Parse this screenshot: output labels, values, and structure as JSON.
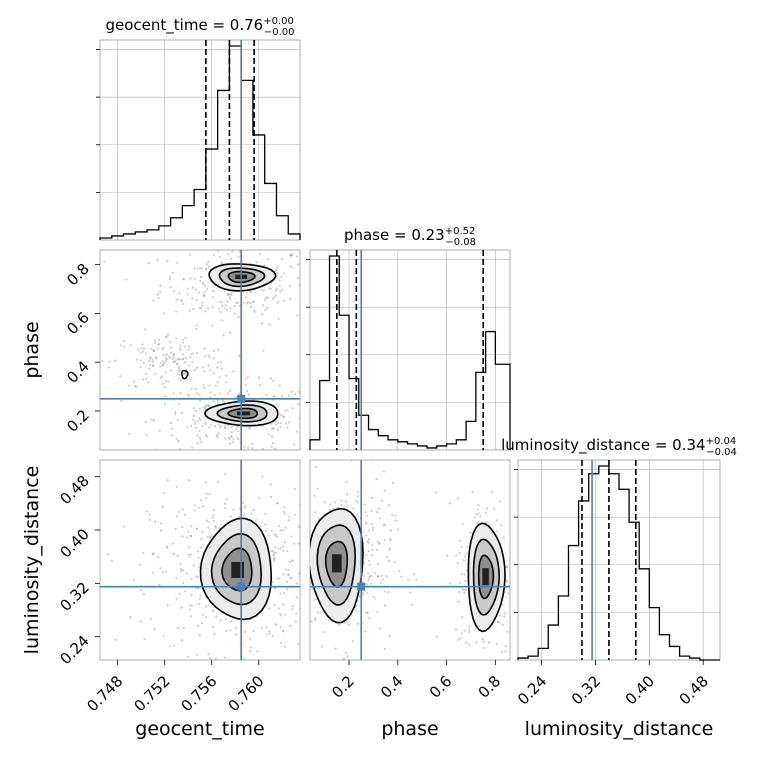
{
  "chart_data": {
    "type": "corner",
    "parameters": [
      "geocent_time",
      "phase",
      "luminosity_distance"
    ],
    "truths": {
      "geocent_time": 0.7585,
      "phase": 0.25,
      "luminosity_distance": 0.315
    },
    "colors": {
      "truth": "#4682b4",
      "hist": "#000000",
      "grid": "#b0b0b0"
    },
    "diagonal": [
      {
        "param": "geocent_time",
        "title": {
          "main": "geocent_time = 0.76",
          "sup": "+0.00",
          "sub": "−0.00"
        },
        "range": [
          0.7465,
          0.7635
        ],
        "bins": [
          0.7465,
          0.7475,
          0.7485,
          0.7495,
          0.7505,
          0.7515,
          0.7525,
          0.7535,
          0.7545,
          0.7555,
          0.7565,
          0.7575,
          0.7585,
          0.7595,
          0.7605,
          0.7615,
          0.7625,
          0.7635
        ],
        "counts": [
          0.01,
          0.02,
          0.03,
          0.04,
          0.05,
          0.07,
          0.11,
          0.17,
          0.25,
          0.45,
          0.74,
          0.96,
          0.79,
          0.52,
          0.28,
          0.12,
          0.03
        ],
        "quantiles": [
          0.7555,
          0.7575,
          0.7596
        ]
      },
      {
        "param": "phase",
        "title": {
          "main": "phase = 0.23",
          "sup": "+0.52",
          "sub": "−0.08"
        },
        "range": [
          0.04,
          0.86
        ],
        "bins": [
          0.04,
          0.08,
          0.12,
          0.16,
          0.2,
          0.24,
          0.28,
          0.32,
          0.36,
          0.4,
          0.44,
          0.48,
          0.52,
          0.56,
          0.6,
          0.64,
          0.68,
          0.72,
          0.76,
          0.8,
          0.86
        ],
        "counts": [
          0.05,
          0.34,
          0.95,
          0.66,
          0.35,
          0.17,
          0.1,
          0.07,
          0.05,
          0.04,
          0.03,
          0.02,
          0.01,
          0.02,
          0.03,
          0.05,
          0.14,
          0.38,
          0.58,
          0.42
        ],
        "quantiles": [
          0.15,
          0.23,
          0.75
        ]
      },
      {
        "param": "luminosity_distance",
        "title": {
          "main": "luminosity_distance = 0.34",
          "sup": "+0.04",
          "sub": "−0.04"
        },
        "range": [
          0.205,
          0.505
        ],
        "bins": [
          0.205,
          0.22,
          0.235,
          0.25,
          0.265,
          0.28,
          0.295,
          0.31,
          0.325,
          0.34,
          0.355,
          0.37,
          0.385,
          0.4,
          0.415,
          0.43,
          0.445,
          0.46,
          0.475,
          0.49,
          0.505
        ],
        "counts": [
          0.01,
          0.02,
          0.06,
          0.18,
          0.33,
          0.59,
          0.82,
          0.96,
          1.0,
          0.96,
          0.88,
          0.71,
          0.47,
          0.27,
          0.13,
          0.07,
          0.02,
          0.01,
          0.0,
          0.0
        ],
        "quantiles": [
          0.3,
          0.34,
          0.38
        ]
      }
    ],
    "pairs": [
      {
        "x": "geocent_time",
        "y": "phase",
        "xrange": [
          0.7465,
          0.7635
        ],
        "yrange": [
          0.04,
          0.86
        ],
        "blobs": [
          {
            "cx": 0.7585,
            "cy": 0.75,
            "rx": 0.0028,
            "ry": 0.055
          },
          {
            "cx": 0.7587,
            "cy": 0.19,
            "rx": 0.0031,
            "ry": 0.05
          }
        ],
        "level_scales": [
          1.0,
          0.68,
          0.4
        ],
        "small_contour": {
          "cx": 0.7537,
          "cy": 0.35,
          "rx": 0.0002,
          "ry": 0.012
        },
        "scatter_bands": [
          {
            "cx": 0.758,
            "cy": 0.72,
            "sx": 0.0032,
            "sy": 0.08,
            "n": 260
          },
          {
            "cx": 0.758,
            "cy": 0.17,
            "sx": 0.0034,
            "sy": 0.07,
            "n": 260
          },
          {
            "cx": 0.7525,
            "cy": 0.4,
            "sx": 0.0025,
            "sy": 0.06,
            "n": 160
          }
        ]
      },
      {
        "x": "geocent_time",
        "y": "luminosity_distance",
        "xrange": [
          0.7465,
          0.7635
        ],
        "yrange": [
          0.205,
          0.505
        ],
        "blobs": [
          {
            "cx": 0.7582,
            "cy": 0.34,
            "rx": 0.003,
            "ry": 0.075
          }
        ],
        "level_scales": [
          1.0,
          0.7,
          0.42
        ],
        "scatter_bands": [
          {
            "cx": 0.758,
            "cy": 0.34,
            "sx": 0.0036,
            "sy": 0.06,
            "n": 520
          }
        ]
      },
      {
        "x": "phase",
        "y": "luminosity_distance",
        "xrange": [
          0.04,
          0.86
        ],
        "yrange": [
          0.205,
          0.505
        ],
        "blobs": [
          {
            "cx": 0.15,
            "cy": 0.35,
            "rx": 0.11,
            "ry": 0.085
          },
          {
            "cx": 0.76,
            "cy": 0.33,
            "rx": 0.075,
            "ry": 0.08
          }
        ],
        "level_scales": [
          1.0,
          0.7,
          0.4
        ],
        "scatter_bands": [
          {
            "cx": 0.18,
            "cy": 0.35,
            "sx": 0.1,
            "sy": 0.06,
            "n": 380
          },
          {
            "cx": 0.76,
            "cy": 0.33,
            "sx": 0.06,
            "sy": 0.06,
            "n": 260
          }
        ]
      }
    ],
    "ticks": {
      "geocent_time": [
        "0.748",
        "0.752",
        "0.756",
        "0.760"
      ],
      "phase": [
        "0.2",
        "0.4",
        "0.6",
        "0.8"
      ],
      "luminosity_distance": [
        "0.24",
        "0.32",
        "0.40",
        "0.48"
      ]
    },
    "axis_labels": {
      "x": [
        "geocent_time",
        "phase",
        "luminosity_distance"
      ],
      "y": [
        "phase",
        "luminosity_distance"
      ]
    },
    "grid": true
  }
}
